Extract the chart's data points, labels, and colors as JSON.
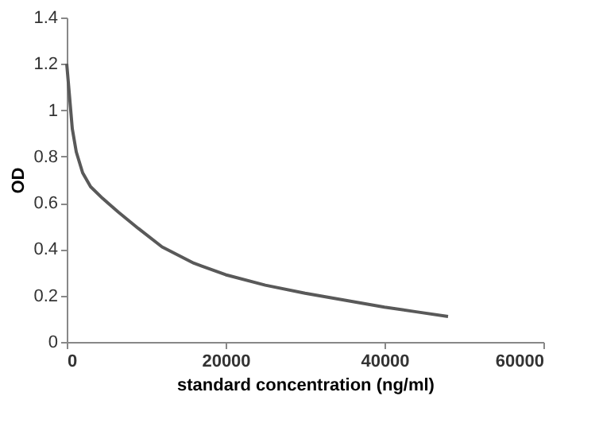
{
  "chart_data": {
    "type": "line",
    "xlabel": "standard concentration (ng/ml)",
    "ylabel": "OD",
    "x": [
      0,
      300,
      700,
      1200,
      2000,
      3000,
      4500,
      6500,
      9000,
      12000,
      16000,
      20000,
      25000,
      30000,
      35000,
      40000,
      44000,
      48000
    ],
    "series": [
      {
        "color": "#595959",
        "values": [
          1.2,
          1.08,
          0.92,
          0.82,
          0.73,
          0.67,
          0.62,
          0.56,
          0.49,
          0.41,
          0.34,
          0.29,
          0.245,
          0.21,
          0.18,
          0.15,
          0.13,
          0.11
        ]
      }
    ],
    "xlim": [
      0,
      60000
    ],
    "xticks": [
      0,
      20000,
      40000,
      60000
    ],
    "ylim": [
      0,
      1.4
    ],
    "yticks": [
      0,
      0.2,
      0.4,
      0.6,
      0.8,
      1,
      1.2,
      1.4
    ],
    "grid": false,
    "marker": "none",
    "line_style": "solid"
  }
}
